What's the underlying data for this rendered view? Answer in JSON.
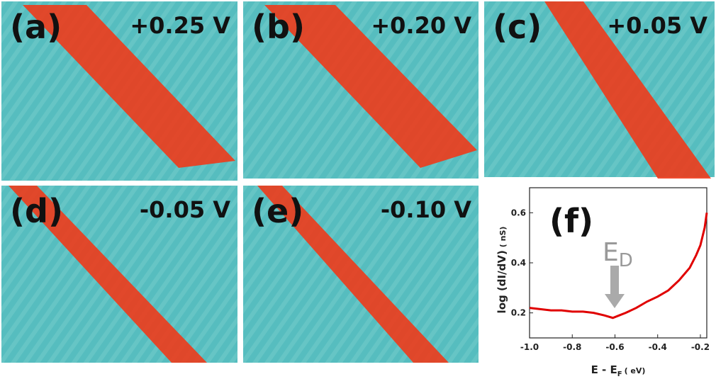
{
  "panels": [
    {
      "label": "(a)",
      "bias": "+0.25 V"
    },
    {
      "label": "(b)",
      "bias": "+0.20 V"
    },
    {
      "label": "(c)",
      "bias": "+0.05 V"
    },
    {
      "label": "(d)",
      "bias": "-0.05 V"
    },
    {
      "label": "(e)",
      "bias": "-0.10 V"
    }
  ],
  "chart_data": {
    "type": "line",
    "panel_label": "(f)",
    "annotation": {
      "main": "E",
      "sub": "D"
    },
    "y_label": {
      "main": "log (dI/dV)",
      "unit": "( nS)"
    },
    "x_label": {
      "main": "E - E",
      "sub": "F",
      "unit": "( eV)"
    },
    "x": [
      -1.0,
      -0.95,
      -0.9,
      -0.85,
      -0.8,
      -0.75,
      -0.7,
      -0.65,
      -0.61,
      -0.58,
      -0.55,
      -0.5,
      -0.45,
      -0.4,
      -0.35,
      -0.3,
      -0.25,
      -0.22,
      -0.2,
      -0.18,
      -0.17
    ],
    "series": [
      {
        "name": "dI/dV",
        "color": "#e00000",
        "values": [
          0.22,
          0.215,
          0.21,
          0.21,
          0.205,
          0.205,
          0.2,
          0.19,
          0.18,
          0.19,
          0.2,
          0.22,
          0.245,
          0.265,
          0.29,
          0.33,
          0.38,
          0.43,
          0.47,
          0.54,
          0.6
        ]
      }
    ],
    "xlim": [
      -1.0,
      -0.17
    ],
    "ylim": [
      0.1,
      0.7
    ],
    "xticks": [
      {
        "value": -1.0,
        "label": "-1.0"
      },
      {
        "value": -0.8,
        "label": "-0.8"
      },
      {
        "value": -0.6,
        "label": "-0.6"
      },
      {
        "value": -0.4,
        "label": "-0.4"
      },
      {
        "value": -0.2,
        "label": "-0.2"
      }
    ],
    "yticks": [
      {
        "value": 0.2,
        "label": "0.2"
      },
      {
        "value": 0.4,
        "label": "0.4"
      },
      {
        "value": 0.6,
        "label": "0.6"
      }
    ]
  }
}
